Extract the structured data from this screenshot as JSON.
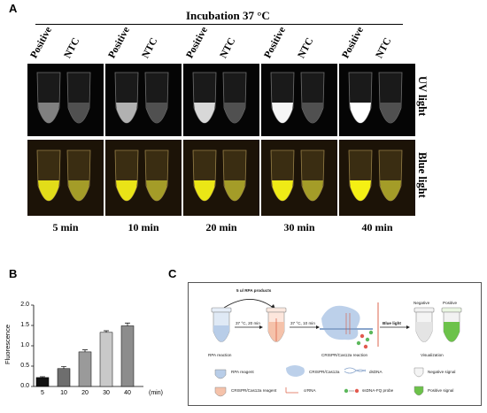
{
  "panel_a": {
    "letter": "A",
    "title": "Incubation 37 °C",
    "columns": [
      {
        "time": "5 min",
        "positive": "Positive",
        "ntc": "NTC",
        "uv_glow": 0.35,
        "blue_glow": 0.85
      },
      {
        "time": "10 min",
        "positive": "Positive",
        "ntc": "NTC",
        "uv_glow": 0.6,
        "blue_glow": 0.9
      },
      {
        "time": "20 min",
        "positive": "Positive",
        "ntc": "NTC",
        "uv_glow": 0.8,
        "blue_glow": 0.92
      },
      {
        "time": "30 min",
        "positive": "Positive",
        "ntc": "NTC",
        "uv_glow": 0.95,
        "blue_glow": 0.95
      },
      {
        "time": "40 min",
        "positive": "Positive",
        "ntc": "NTC",
        "uv_glow": 1.0,
        "blue_glow": 1.0
      }
    ],
    "row_labels": {
      "uv": "UV light",
      "blue": "Blue light"
    }
  },
  "panel_b": {
    "letter": "B",
    "chart_data": {
      "type": "bar",
      "categories": [
        "5",
        "10",
        "20",
        "30",
        "40"
      ],
      "values": [
        0.22,
        0.44,
        0.85,
        1.33,
        1.49
      ],
      "errors": [
        0.02,
        0.05,
        0.05,
        0.04,
        0.07
      ],
      "bar_colors": [
        "#111111",
        "#6e6e6e",
        "#9a9a9a",
        "#c9c9c9",
        "#8c8c8c"
      ],
      "xlabel": "(min)",
      "ylabel": "Fluorescence",
      "ylim": [
        0,
        2.0
      ],
      "yticks": [
        "0.0",
        "0.5",
        "1.0",
        "1.5",
        "2.0"
      ]
    }
  },
  "panel_c": {
    "letter": "C",
    "rpa_products": "5 ul RPA products",
    "step1": "37 °C, 20 min",
    "step2": "37 °C, 10 min",
    "blue_light": "Blue light",
    "negative": "Negative",
    "positive": "Positive",
    "rpa_reaction": "RPA reaction",
    "crispr_reaction": "CRISPR/Cas12a reaction",
    "visualization": "Visualization",
    "legend": {
      "rpa_reagent": "RPA reagent",
      "crispr_cas12a": "CRISPR/Cas12a",
      "dsdna": "dsDNA",
      "negative_signal": "Negative signal",
      "crispr_reagent": "CRISPR/Cas12a reagent",
      "crrna": "crRNA",
      "ssdna_probe": "ssDNA-FQ probe",
      "positive_signal": "Positive signal"
    }
  }
}
